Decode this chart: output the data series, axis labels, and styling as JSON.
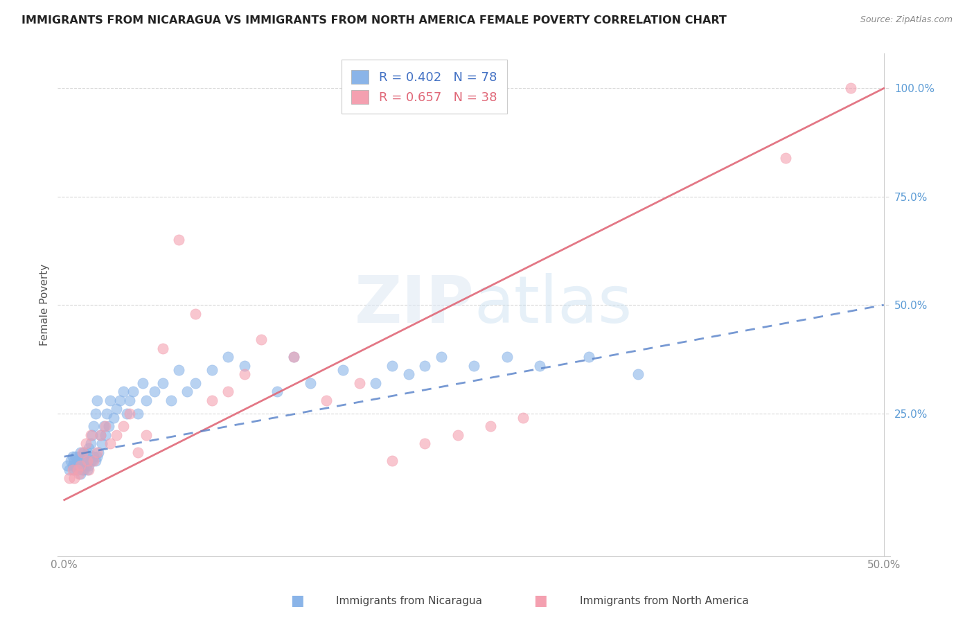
{
  "title": "IMMIGRANTS FROM NICARAGUA VS IMMIGRANTS FROM NORTH AMERICA FEMALE POVERTY CORRELATION CHART",
  "source": "Source: ZipAtlas.com",
  "ylabel": "Female Poverty",
  "legend_blue_label": "R = 0.402   N = 78",
  "legend_pink_label": "R = 0.657   N = 38",
  "legend_label_blue": "Immigrants from Nicaragua",
  "legend_label_pink": "Immigrants from North America",
  "blue_color": "#8ab4e8",
  "pink_color": "#f4a0b0",
  "blue_line_color": "#5580c8",
  "pink_line_color": "#e06878",
  "watermark_zip": "ZIP",
  "watermark_atlas": "atlas",
  "xlim": [
    0.0,
    0.5
  ],
  "ylim": [
    -0.08,
    1.08
  ],
  "blue_scatter_x": [
    0.002,
    0.003,
    0.004,
    0.005,
    0.005,
    0.006,
    0.006,
    0.007,
    0.007,
    0.008,
    0.008,
    0.009,
    0.009,
    0.01,
    0.01,
    0.01,
    0.011,
    0.011,
    0.012,
    0.012,
    0.012,
    0.013,
    0.013,
    0.014,
    0.014,
    0.015,
    0.015,
    0.016,
    0.016,
    0.017,
    0.017,
    0.018,
    0.018,
    0.019,
    0.019,
    0.02,
    0.02,
    0.021,
    0.022,
    0.023,
    0.024,
    0.025,
    0.026,
    0.027,
    0.028,
    0.03,
    0.032,
    0.034,
    0.036,
    0.038,
    0.04,
    0.042,
    0.045,
    0.048,
    0.05,
    0.055,
    0.06,
    0.065,
    0.07,
    0.075,
    0.08,
    0.09,
    0.1,
    0.11,
    0.13,
    0.14,
    0.15,
    0.17,
    0.19,
    0.2,
    0.21,
    0.22,
    0.23,
    0.25,
    0.27,
    0.29,
    0.32,
    0.35
  ],
  "blue_scatter_y": [
    0.13,
    0.12,
    0.14,
    0.13,
    0.15,
    0.12,
    0.14,
    0.13,
    0.15,
    0.12,
    0.14,
    0.13,
    0.15,
    0.11,
    0.13,
    0.16,
    0.12,
    0.14,
    0.12,
    0.14,
    0.16,
    0.13,
    0.15,
    0.12,
    0.16,
    0.13,
    0.17,
    0.14,
    0.18,
    0.14,
    0.2,
    0.15,
    0.22,
    0.14,
    0.25,
    0.15,
    0.28,
    0.16,
    0.2,
    0.18,
    0.22,
    0.2,
    0.25,
    0.22,
    0.28,
    0.24,
    0.26,
    0.28,
    0.3,
    0.25,
    0.28,
    0.3,
    0.25,
    0.32,
    0.28,
    0.3,
    0.32,
    0.28,
    0.35,
    0.3,
    0.32,
    0.35,
    0.38,
    0.36,
    0.3,
    0.38,
    0.32,
    0.35,
    0.32,
    0.36,
    0.34,
    0.36,
    0.38,
    0.36,
    0.38,
    0.36,
    0.38,
    0.34
  ],
  "pink_scatter_x": [
    0.003,
    0.005,
    0.006,
    0.008,
    0.009,
    0.01,
    0.011,
    0.013,
    0.014,
    0.015,
    0.016,
    0.018,
    0.02,
    0.022,
    0.025,
    0.028,
    0.032,
    0.036,
    0.04,
    0.045,
    0.05,
    0.06,
    0.07,
    0.08,
    0.09,
    0.1,
    0.11,
    0.12,
    0.14,
    0.16,
    0.18,
    0.2,
    0.22,
    0.24,
    0.26,
    0.28,
    0.44,
    0.48
  ],
  "pink_scatter_y": [
    0.1,
    0.12,
    0.1,
    0.12,
    0.11,
    0.13,
    0.16,
    0.18,
    0.14,
    0.12,
    0.2,
    0.14,
    0.16,
    0.2,
    0.22,
    0.18,
    0.2,
    0.22,
    0.25,
    0.16,
    0.2,
    0.4,
    0.65,
    0.48,
    0.28,
    0.3,
    0.34,
    0.42,
    0.38,
    0.28,
    0.32,
    0.14,
    0.18,
    0.2,
    0.22,
    0.24,
    0.84,
    1.0
  ],
  "pink_line_x0": 0.0,
  "pink_line_y0": 0.05,
  "pink_line_x1": 0.5,
  "pink_line_y1": 1.0,
  "blue_line_x0": 0.0,
  "blue_line_y0": 0.15,
  "blue_line_x1": 0.5,
  "blue_line_y1": 0.5
}
